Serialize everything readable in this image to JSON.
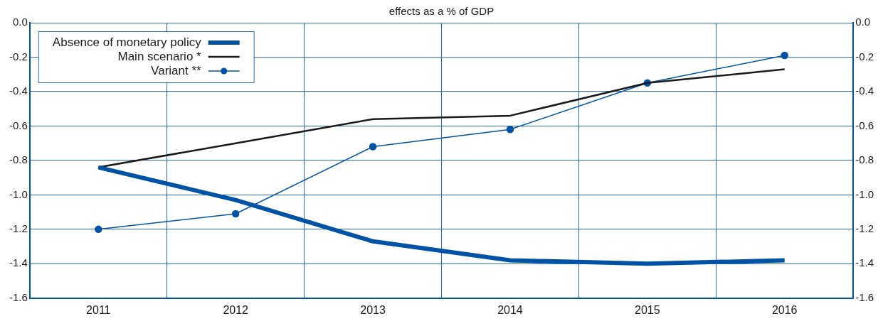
{
  "chart_data": {
    "type": "line",
    "subtitle": "effects as a % of GDP",
    "categories": [
      "2011",
      "2012",
      "2013",
      "2014",
      "2015",
      "2016"
    ],
    "series": [
      {
        "name": "Absence of monetary policy",
        "color": "#0052a5",
        "values": [
          -0.84,
          -1.03,
          -1.27,
          -1.38,
          -1.4,
          -1.38
        ]
      },
      {
        "name": "Main scenario *",
        "color": "#1a1a1a",
        "values": [
          -0.84,
          -0.7,
          -0.56,
          -0.54,
          -0.35,
          -0.27
        ]
      },
      {
        "name": "Variant **",
        "color": "#0052a5",
        "marker": "circle",
        "values": [
          -1.2,
          -1.11,
          -0.72,
          -0.62,
          -0.35,
          -0.19
        ]
      }
    ],
    "ylim": [
      -1.6,
      0
    ],
    "yticks": [
      {
        "value": 0,
        "label": "0.0"
      },
      {
        "value": -0.2,
        "label": "-0.2"
      },
      {
        "value": -0.4,
        "label": "-0.4"
      },
      {
        "value": -0.6,
        "label": "-0.6"
      },
      {
        "value": -0.8,
        "label": "-0.8"
      },
      {
        "value": -1.0,
        "label": "-1.0"
      },
      {
        "value": -1.2,
        "label": "-1.2"
      },
      {
        "value": -1.4,
        "label": "-1.4"
      },
      {
        "value": -1.6,
        "label": "-1.6"
      }
    ],
    "y2lim": [
      -1.6,
      0
    ],
    "y2ticks": [
      {
        "value": 0,
        "label": "0.0"
      },
      {
        "value": -0.2,
        "label": "-0.2"
      },
      {
        "value": -0.4,
        "label": "-0.4"
      },
      {
        "value": -0.6,
        "label": "-0.6"
      },
      {
        "value": -0.8,
        "label": "-0.8"
      },
      {
        "value": -1.0,
        "label": "-1.0"
      },
      {
        "value": -1.2,
        "label": "-1.2"
      },
      {
        "value": -1.4,
        "label": "-1.4"
      },
      {
        "value": -1.6,
        "label": "-1.6"
      }
    ],
    "grid": true,
    "legend": "top left"
  }
}
